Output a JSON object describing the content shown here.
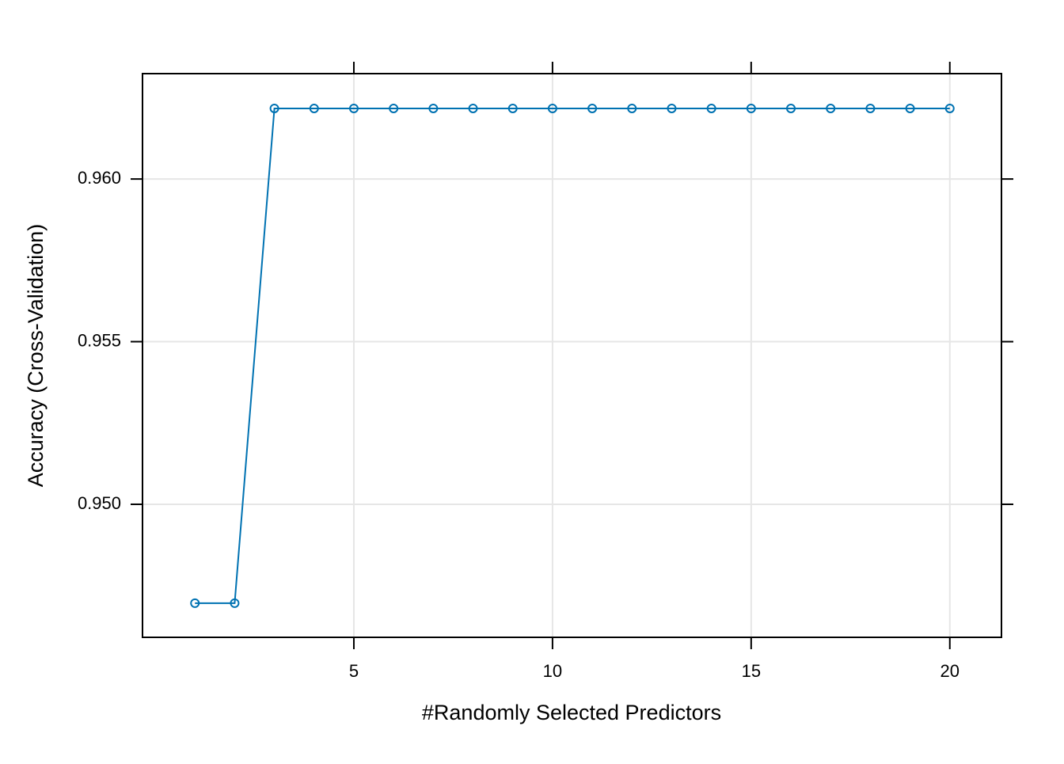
{
  "chart_data": {
    "type": "line",
    "x_label": "#Randomly Selected Predictors",
    "y_label": "Accuracy (Cross-Validation)",
    "x": [
      1,
      2,
      3,
      4,
      5,
      6,
      7,
      8,
      9,
      10,
      11,
      12,
      13,
      14,
      15,
      16,
      17,
      18,
      19,
      20
    ],
    "series": [
      {
        "color": "#0072b2",
        "values": [
          0.94696,
          0.94696,
          0.96217,
          0.96217,
          0.96217,
          0.96217,
          0.96217,
          0.96217,
          0.96217,
          0.96217,
          0.96217,
          0.96217,
          0.96217,
          0.96217,
          0.96217,
          0.96217,
          0.96217,
          0.96217,
          0.96217,
          0.96217
        ]
      }
    ],
    "xlim": [
      -0.32,
      21.3
    ],
    "xticks": [
      5,
      10,
      15,
      20
    ],
    "ylim": [
      0.94591,
      0.96324
    ],
    "yticks": [
      {
        "value": 0.95,
        "label": "0.950"
      },
      {
        "value": 0.955,
        "label": "0.955"
      },
      {
        "value": 0.96,
        "label": "0.960"
      }
    ],
    "grid": true
  }
}
